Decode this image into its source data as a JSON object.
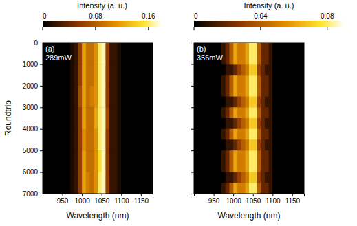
{
  "chart_data": [
    {
      "type": "heatmap",
      "annotations": [
        "(a)",
        "289mW"
      ],
      "x_label": "Wavelength (nm)",
      "y_label": "Roundtrip",
      "xlim": [
        900,
        1180
      ],
      "xticks": [
        950,
        1000,
        1050,
        1100,
        1150
      ],
      "ylim": [
        0,
        7000
      ],
      "yticks": [
        0,
        1000,
        2000,
        3000,
        4000,
        5000,
        6000,
        7000
      ],
      "x_bins": [
        950,
        960,
        970,
        980,
        990,
        1000,
        1010,
        1020,
        1030,
        1040,
        1050,
        1060,
        1070,
        1080,
        1090,
        1100,
        1110
      ],
      "y_bins": [
        0,
        1000,
        2000,
        3000,
        4000,
        5000,
        6000,
        7000
      ],
      "intensity": [
        [
          0.0,
          0.0,
          0.01,
          0.02,
          0.06,
          0.12,
          0.09,
          0.09,
          0.11,
          0.16,
          0.17,
          0.06,
          0.02,
          0.02,
          0.01,
          0.0
        ],
        [
          0.0,
          0.0,
          0.01,
          0.02,
          0.06,
          0.12,
          0.09,
          0.09,
          0.11,
          0.16,
          0.17,
          0.06,
          0.02,
          0.02,
          0.01,
          0.0
        ],
        [
          0.0,
          0.0,
          0.01,
          0.02,
          0.07,
          0.12,
          0.09,
          0.1,
          0.11,
          0.16,
          0.17,
          0.06,
          0.02,
          0.02,
          0.01,
          0.0
        ],
        [
          0.0,
          0.0,
          0.01,
          0.02,
          0.06,
          0.12,
          0.09,
          0.09,
          0.12,
          0.16,
          0.17,
          0.07,
          0.02,
          0.02,
          0.01,
          0.0
        ],
        [
          0.0,
          0.0,
          0.01,
          0.02,
          0.06,
          0.11,
          0.09,
          0.09,
          0.11,
          0.16,
          0.17,
          0.06,
          0.02,
          0.02,
          0.01,
          0.0
        ],
        [
          0.0,
          0.0,
          0.01,
          0.02,
          0.06,
          0.12,
          0.09,
          0.09,
          0.11,
          0.15,
          0.17,
          0.06,
          0.02,
          0.02,
          0.01,
          0.0
        ],
        [
          0.0,
          0.0,
          0.01,
          0.02,
          0.06,
          0.12,
          0.1,
          0.09,
          0.11,
          0.16,
          0.17,
          0.06,
          0.02,
          0.02,
          0.01,
          0.0
        ]
      ],
      "colorbar": {
        "label": "Intensity (a. u.)",
        "range": [
          0,
          0.18
        ],
        "ticks": [
          0,
          0.08,
          0.16
        ]
      }
    },
    {
      "type": "heatmap",
      "annotations": [
        "(b)",
        "356mW"
      ],
      "x_label": "Wavelength (nm)",
      "tick_labels": "x",
      "xlim": [
        900,
        1180
      ],
      "xticks": [
        950,
        1000,
        1050,
        1100,
        1150
      ],
      "ylim": [
        0,
        7000
      ],
      "yticks": [
        0,
        1000,
        2000,
        3000,
        4000,
        5000,
        6000,
        7000
      ],
      "x_bins": [
        950,
        960,
        970,
        980,
        990,
        1000,
        1010,
        1020,
        1030,
        1040,
        1050,
        1060,
        1070,
        1080,
        1090,
        1100,
        1110
      ],
      "y_bins": [
        0,
        500,
        1000,
        1500,
        2000,
        2500,
        3000,
        3500,
        4000,
        4500,
        5000,
        5500,
        6000,
        6500,
        7000
      ],
      "intensity": [
        [
          0.0,
          0.0,
          0.01,
          0.02,
          0.04,
          0.06,
          0.05,
          0.05,
          0.06,
          0.08,
          0.08,
          0.04,
          0.02,
          0.02,
          0.01,
          0.0
        ],
        [
          0.0,
          0.0,
          0.01,
          0.02,
          0.04,
          0.06,
          0.05,
          0.05,
          0.06,
          0.08,
          0.08,
          0.04,
          0.02,
          0.02,
          0.01,
          0.0
        ],
        [
          0.0,
          0.0,
          0.0,
          0.01,
          0.01,
          0.02,
          0.03,
          0.04,
          0.05,
          0.07,
          0.07,
          0.03,
          0.02,
          0.01,
          0.01,
          0.0
        ],
        [
          0.0,
          0.0,
          0.01,
          0.02,
          0.04,
          0.06,
          0.05,
          0.05,
          0.06,
          0.08,
          0.08,
          0.04,
          0.02,
          0.02,
          0.01,
          0.0
        ],
        [
          0.0,
          0.0,
          0.01,
          0.02,
          0.04,
          0.06,
          0.05,
          0.05,
          0.06,
          0.08,
          0.08,
          0.04,
          0.02,
          0.02,
          0.01,
          0.0
        ],
        [
          0.0,
          0.0,
          0.0,
          0.01,
          0.01,
          0.02,
          0.03,
          0.04,
          0.05,
          0.07,
          0.07,
          0.03,
          0.02,
          0.01,
          0.01,
          0.0
        ],
        [
          0.0,
          0.0,
          0.01,
          0.02,
          0.04,
          0.06,
          0.05,
          0.05,
          0.06,
          0.08,
          0.08,
          0.04,
          0.02,
          0.02,
          0.01,
          0.0
        ],
        [
          0.0,
          0.0,
          0.0,
          0.01,
          0.01,
          0.02,
          0.03,
          0.04,
          0.05,
          0.07,
          0.07,
          0.03,
          0.02,
          0.01,
          0.01,
          0.0
        ],
        [
          0.0,
          0.0,
          0.01,
          0.02,
          0.04,
          0.06,
          0.05,
          0.05,
          0.06,
          0.08,
          0.08,
          0.04,
          0.02,
          0.02,
          0.01,
          0.0
        ],
        [
          0.0,
          0.0,
          0.0,
          0.01,
          0.01,
          0.02,
          0.03,
          0.04,
          0.05,
          0.07,
          0.07,
          0.03,
          0.02,
          0.01,
          0.01,
          0.0
        ],
        [
          0.0,
          0.0,
          0.01,
          0.02,
          0.04,
          0.06,
          0.05,
          0.05,
          0.06,
          0.08,
          0.08,
          0.04,
          0.02,
          0.02,
          0.01,
          0.0
        ],
        [
          0.0,
          0.0,
          0.01,
          0.02,
          0.04,
          0.06,
          0.05,
          0.05,
          0.06,
          0.08,
          0.08,
          0.04,
          0.02,
          0.02,
          0.01,
          0.0
        ],
        [
          0.0,
          0.0,
          0.0,
          0.01,
          0.01,
          0.02,
          0.03,
          0.04,
          0.05,
          0.07,
          0.07,
          0.03,
          0.02,
          0.01,
          0.01,
          0.0
        ],
        [
          0.0,
          0.0,
          0.01,
          0.02,
          0.04,
          0.06,
          0.05,
          0.05,
          0.06,
          0.08,
          0.08,
          0.04,
          0.02,
          0.02,
          0.01,
          0.0
        ]
      ],
      "colorbar": {
        "label": "Intensity (a. u.)",
        "range": [
          0,
          0.09
        ],
        "ticks": [
          0,
          0.04,
          0.08
        ]
      }
    }
  ]
}
